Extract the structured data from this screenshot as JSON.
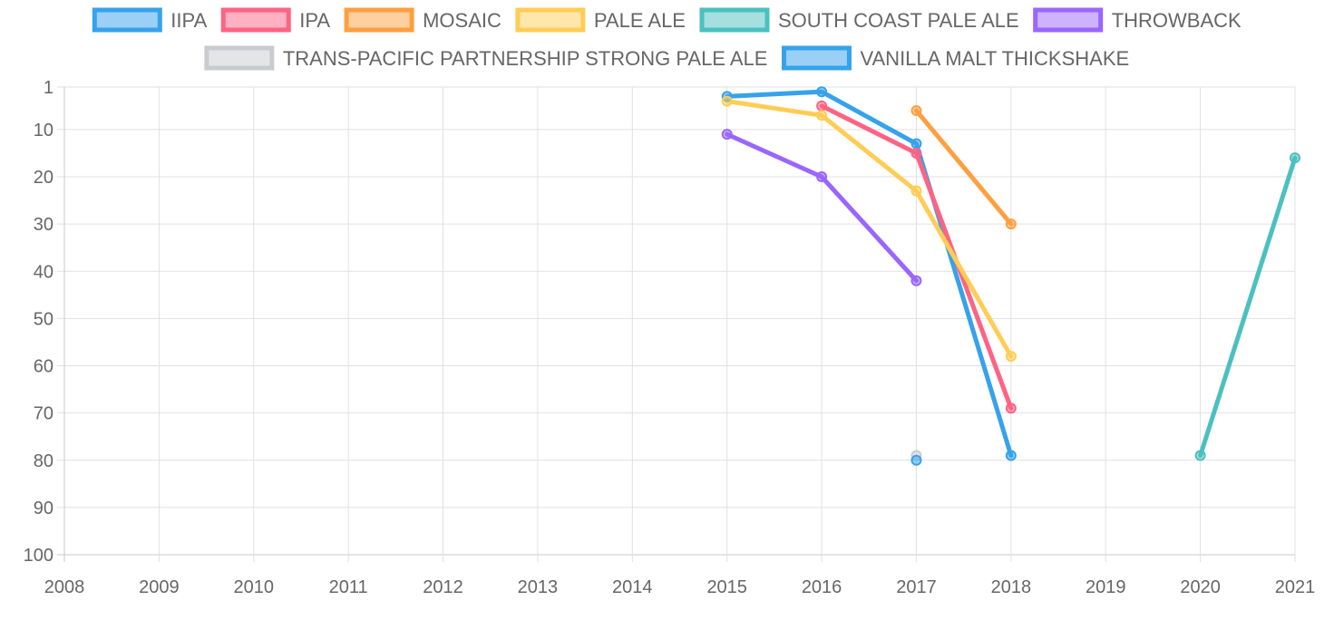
{
  "chart_data": {
    "type": "line",
    "y_axis": {
      "reversed": true,
      "min": 1,
      "max": 100,
      "ticks": [
        1,
        10,
        20,
        30,
        40,
        50,
        60,
        70,
        80,
        90,
        100
      ]
    },
    "x_axis": {
      "categories": [
        "2008",
        "2009",
        "2010",
        "2011",
        "2012",
        "2013",
        "2014",
        "2015",
        "2016",
        "2017",
        "2018",
        "2019",
        "2020",
        "2021"
      ]
    },
    "grid": true,
    "legend_position": "top",
    "series": [
      {
        "name": "IIPA",
        "color": "#36a2eb",
        "fill": "rgba(54,162,235,0.5)",
        "points": [
          {
            "x": "2015",
            "y": 3
          },
          {
            "x": "2016",
            "y": 2
          },
          {
            "x": "2017",
            "y": 13
          },
          {
            "x": "2018",
            "y": 79
          }
        ]
      },
      {
        "name": "IPA",
        "color": "#ff6384",
        "fill": "rgba(255,99,132,0.5)",
        "points": [
          {
            "x": "2016",
            "y": 5
          },
          {
            "x": "2017",
            "y": 15
          },
          {
            "x": "2018",
            "y": 69
          }
        ]
      },
      {
        "name": "MOSAIC",
        "color": "#ff9f40",
        "fill": "rgba(255,159,64,0.5)",
        "points": [
          {
            "x": "2017",
            "y": 6
          },
          {
            "x": "2018",
            "y": 30
          }
        ]
      },
      {
        "name": "PALE ALE",
        "color": "#ffcd56",
        "fill": "rgba(255,205,86,0.5)",
        "points": [
          {
            "x": "2015",
            "y": 4
          },
          {
            "x": "2016",
            "y": 7
          },
          {
            "x": "2017",
            "y": 23
          },
          {
            "x": "2018",
            "y": 58
          }
        ]
      },
      {
        "name": "SOUTH COAST PALE ALE",
        "color": "#4bc0c0",
        "fill": "rgba(75,192,192,0.5)",
        "points": [
          {
            "x": "2020",
            "y": 79
          },
          {
            "x": "2021",
            "y": 16
          }
        ]
      },
      {
        "name": "THROWBACK",
        "color": "#9966ff",
        "fill": "rgba(153,102,255,0.5)",
        "points": [
          {
            "x": "2015",
            "y": 11
          },
          {
            "x": "2016",
            "y": 20
          },
          {
            "x": "2017",
            "y": 42
          }
        ]
      },
      {
        "name": "TRANS-PACIFIC PARTNERSHIP STRONG PALE ALE",
        "color": "#c9cbcf",
        "fill": "rgba(201,203,207,0.5)",
        "points": [
          {
            "x": "2017",
            "y": 79
          }
        ]
      },
      {
        "name": "VANILLA MALT THICKSHAKE",
        "color": "#36a2eb",
        "fill": "rgba(54,162,235,0.5)",
        "points": [
          {
            "x": "2017",
            "y": 80
          }
        ]
      }
    ]
  }
}
